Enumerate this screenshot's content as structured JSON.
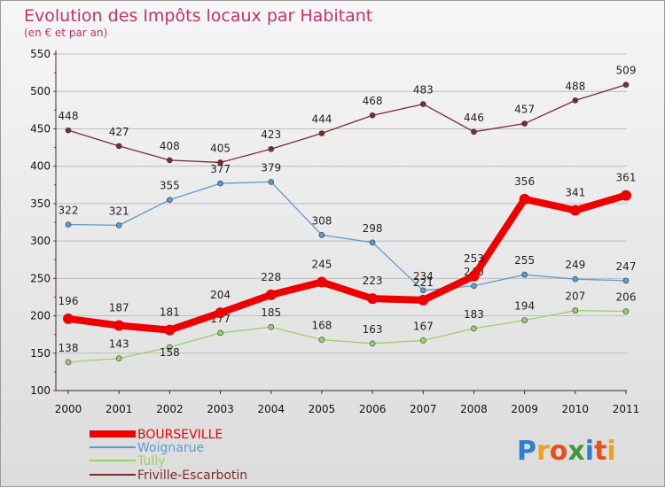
{
  "chart_data": {
    "type": "line",
    "title": "Evolution des Impôts locaux par Habitant",
    "subtitle": "(en € et par an)",
    "x": [
      "2000",
      "2001",
      "2002",
      "2003",
      "2004",
      "2005",
      "2006",
      "2007",
      "2008",
      "2009",
      "2010",
      "2011"
    ],
    "ylim": [
      100,
      550
    ],
    "yticks": [
      "550",
      "500",
      "450",
      "400",
      "350",
      "300",
      "250",
      "200",
      "150",
      "100"
    ],
    "legend_position": "bottom-left",
    "series": [
      {
        "name": "BOURSEVILLE",
        "color": "#ee0000",
        "values": [
          196,
          187,
          181,
          204,
          228,
          245,
          223,
          221,
          253,
          356,
          341,
          361
        ],
        "labels": [
          "196",
          "187",
          "181",
          "204",
          "228",
          "245",
          "223",
          "221",
          "253",
          "356",
          "341",
          "361"
        ]
      },
      {
        "name": "Woignarue",
        "color": "#5b9bd5",
        "values": [
          322,
          321,
          355,
          377,
          379,
          308,
          298,
          234,
          240,
          255,
          249,
          247
        ],
        "labels": [
          "322",
          "321",
          "355",
          "377",
          "379",
          "308",
          "298",
          "234",
          "240",
          "255",
          "249",
          "247"
        ]
      },
      {
        "name": "Tully",
        "color": "#9ad066",
        "values": [
          138,
          143,
          158,
          177,
          185,
          168,
          163,
          167,
          183,
          194,
          207,
          206
        ],
        "labels": [
          "138",
          "143",
          "158",
          "177",
          "185",
          "168",
          "163",
          "167",
          "183",
          "194",
          "207",
          "206"
        ]
      },
      {
        "name": "Friville-Escarbotin",
        "color": "#7b2c2c",
        "values": [
          448,
          427,
          408,
          405,
          423,
          444,
          468,
          483,
          446,
          457,
          488,
          509
        ],
        "labels": [
          "448",
          "427",
          "408",
          "405",
          "423",
          "444",
          "468",
          "483",
          "446",
          "457",
          "488",
          "509"
        ]
      }
    ]
  },
  "logo": {
    "text": "Proxiti",
    "p": "P",
    "r": "r",
    "o": "o",
    "x": "x",
    "i1": "i",
    "t": "t",
    "i2": "i"
  }
}
